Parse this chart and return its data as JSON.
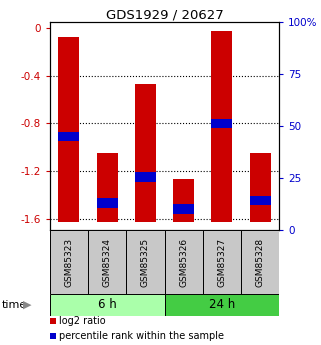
{
  "title": "GDS1929 / 20627",
  "samples": [
    "GSM85323",
    "GSM85324",
    "GSM85325",
    "GSM85326",
    "GSM85327",
    "GSM85328"
  ],
  "log2_values": [
    -0.07,
    -1.05,
    -0.47,
    -1.27,
    -0.02,
    -1.05
  ],
  "log2_bottoms": [
    -1.63,
    -1.63,
    -1.63,
    -1.63,
    -1.63,
    -1.63
  ],
  "percentile_values": [
    -0.91,
    -1.47,
    -1.25,
    -1.52,
    -0.8,
    -1.45
  ],
  "percentile_bar_half": 0.04,
  "ylim_left": [
    -1.7,
    0.05
  ],
  "yticks_left": [
    0,
    -0.4,
    -0.8,
    -1.2,
    -1.6
  ],
  "ytick_labels_left": [
    "0",
    "-0.4",
    "-0.8",
    "-1.2",
    "-1.6"
  ],
  "ytick_labels_right": [
    "0",
    "25",
    "50",
    "75",
    "100%"
  ],
  "groups": [
    {
      "label": "6 h",
      "samples": [
        0,
        1,
        2
      ],
      "color": "#AAFFAA"
    },
    {
      "label": "24 h",
      "samples": [
        3,
        4,
        5
      ],
      "color": "#44CC44"
    }
  ],
  "bar_color": "#CC0000",
  "percentile_color": "#0000CC",
  "bar_width": 0.55,
  "time_label": "time",
  "legend_log2": "log2 ratio",
  "legend_pct": "percentile rank within the sample",
  "axis_label_color_left": "#CC0000",
  "axis_label_color_right": "#0000CC"
}
